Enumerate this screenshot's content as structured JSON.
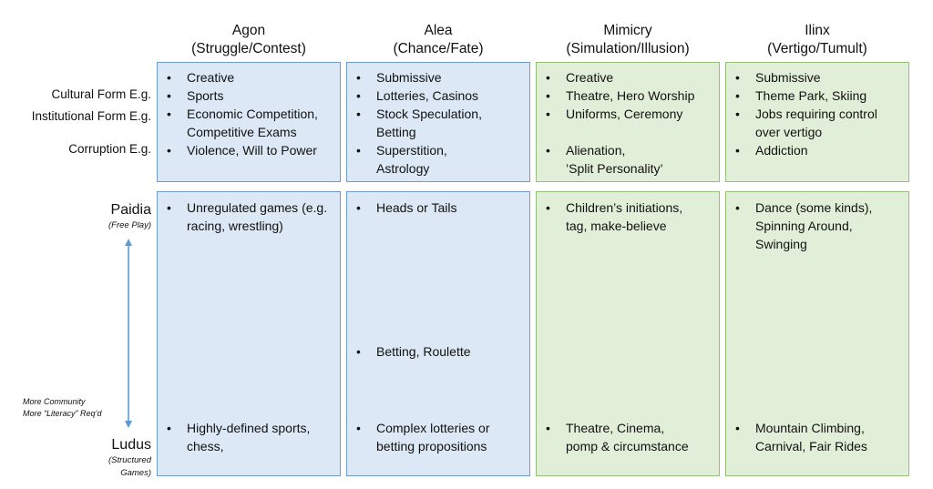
{
  "columns": [
    {
      "name": "Agon",
      "subtitle": "(Struggle/Contest)",
      "color": "blue",
      "top": [
        {
          "line": 0,
          "text": "Creative"
        },
        {
          "line": 1,
          "text": "Sports"
        },
        {
          "line": 2,
          "text": "Economic Competition,\nCompetitive Exams"
        },
        {
          "line": 4,
          "text": "Violence, Will to Power"
        }
      ],
      "paidia": [
        {
          "text": "Unregulated games (e.g.\nracing, wrestling)"
        }
      ],
      "middle": [],
      "ludus": [
        {
          "text": "Highly-defined sports,\nchess,"
        }
      ]
    },
    {
      "name": "Alea",
      "subtitle": "(Chance/Fate)",
      "color": "blue",
      "top": [
        {
          "line": 0,
          "text": "Submissive"
        },
        {
          "line": 1,
          "text": "Lotteries, Casinos"
        },
        {
          "line": 2,
          "text": "Stock Speculation,\nBetting"
        },
        {
          "line": 4,
          "text": "Superstition,\nAstrology"
        }
      ],
      "paidia": [
        {
          "text": "Heads or Tails"
        }
      ],
      "middle": [
        {
          "text": "Betting, Roulette"
        }
      ],
      "ludus": [
        {
          "text": "Complex lotteries or\nbetting propositions"
        }
      ]
    },
    {
      "name": "Mimicry",
      "subtitle": "(Simulation/Illusion)",
      "color": "green",
      "top": [
        {
          "line": 0,
          "text": "Creative"
        },
        {
          "line": 1,
          "text": "Theatre, Hero Worship"
        },
        {
          "line": 2,
          "text": "Uniforms, Ceremony"
        },
        {
          "line": 4,
          "text": "Alienation,\n’Split Personality’"
        }
      ],
      "paidia": [
        {
          "text": "Children’s initiations,\ntag, make-believe"
        }
      ],
      "middle": [],
      "ludus": [
        {
          "text": "Theatre, Cinema,\npomp & circumstance"
        }
      ]
    },
    {
      "name": "Ilinx",
      "subtitle": "(Vertigo/Tumult)",
      "color": "green",
      "top": [
        {
          "line": 0,
          "text": "Submissive"
        },
        {
          "line": 1,
          "text": "Theme Park, Skiing"
        },
        {
          "line": 2,
          "text": "Jobs requiring control\nover vertigo"
        },
        {
          "line": 4,
          "text": "Addiction"
        }
      ],
      "paidia": [
        {
          "text": "Dance (some kinds),\nSpinning Around,\nSwinging"
        }
      ],
      "middle": [],
      "ludus": [
        {
          "text": "Mountain Climbing,\nCarnival, Fair Rides"
        }
      ]
    }
  ],
  "row_labels": {
    "cultural": "Cultural Form E.g.",
    "institutional": "Institutional Form E.g.",
    "corruption": "Corruption E.g."
  },
  "axis": {
    "paidia": "Paidia",
    "paidia_sub": "(Free Play)",
    "ludus": "Ludus",
    "ludus_sub": "(Structured\nGames)",
    "note": "More Community\nMore “Literacy” Req’d",
    "arrow_color": "#5b9bd5"
  },
  "bullet": "•",
  "colors": {
    "blue_fill": "#dce8f5",
    "blue_border": "#6e9bcb",
    "green_fill": "#e2efd8",
    "green_border": "#93c07a"
  }
}
